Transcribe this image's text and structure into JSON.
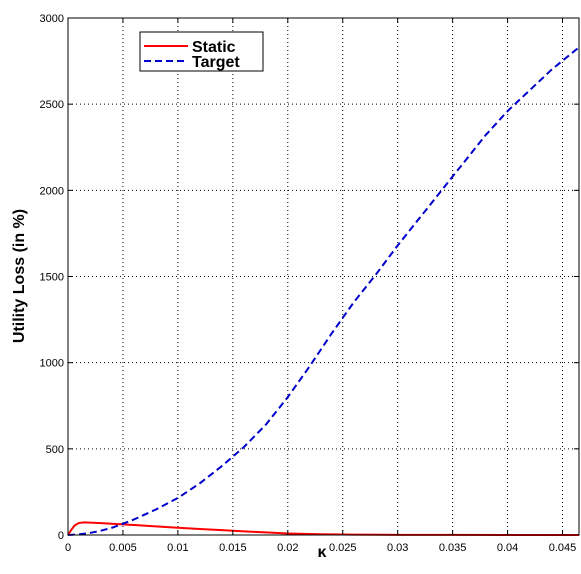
{
  "chart_data": {
    "type": "line",
    "title": "",
    "xlabel": "κ",
    "ylabel": "Utility Loss (in %)",
    "xlim": [
      0,
      0.0465
    ],
    "ylim": [
      0,
      3000
    ],
    "grid": true,
    "legend_position": "top-left",
    "x_ticks": [
      0,
      0.005,
      0.01,
      0.015,
      0.02,
      0.025,
      0.03,
      0.035,
      0.04,
      0.045
    ],
    "x_tick_labels": [
      "0",
      "0.005",
      "0.01",
      "0.015",
      "0.02",
      "0.025",
      "0.03",
      "0.035",
      "0.04",
      "0.045"
    ],
    "y_ticks": [
      0,
      500,
      1000,
      1500,
      2000,
      2500,
      3000
    ],
    "y_tick_labels": [
      "0",
      "500",
      "1000",
      "1500",
      "2000",
      "2500",
      "3000"
    ],
    "series": [
      {
        "name": "Static",
        "color": "#ff0000",
        "dash": "solid",
        "x": [
          0,
          0.0003,
          0.0006,
          0.001,
          0.0015,
          0.002,
          0.003,
          0.004,
          0.005,
          0.006,
          0.008,
          0.01,
          0.012,
          0.014,
          0.016,
          0.018,
          0.02,
          0.023,
          0.026,
          0.03,
          0.035,
          0.04,
          0.0465
        ],
        "y": [
          0,
          30,
          55,
          70,
          73,
          72,
          69,
          65,
          62,
          58,
          50,
          42,
          35,
          28,
          21,
          15,
          9,
          4,
          2,
          1,
          0.5,
          0.3,
          0.2
        ]
      },
      {
        "name": "Target",
        "color": "#0000cc",
        "dash": "dashed",
        "x": [
          0,
          0.001,
          0.002,
          0.003,
          0.004,
          0.005,
          0.006,
          0.008,
          0.01,
          0.012,
          0.014,
          0.016,
          0.018,
          0.02,
          0.022,
          0.024,
          0.026,
          0.028,
          0.03,
          0.032,
          0.034,
          0.036,
          0.038,
          0.04,
          0.042,
          0.044,
          0.0465
        ],
        "y": [
          0,
          4,
          12,
          25,
          42,
          65,
          90,
          148,
          215,
          300,
          400,
          510,
          640,
          800,
          980,
          1170,
          1350,
          1510,
          1680,
          1840,
          2000,
          2160,
          2320,
          2460,
          2580,
          2700,
          2830
        ]
      }
    ]
  }
}
